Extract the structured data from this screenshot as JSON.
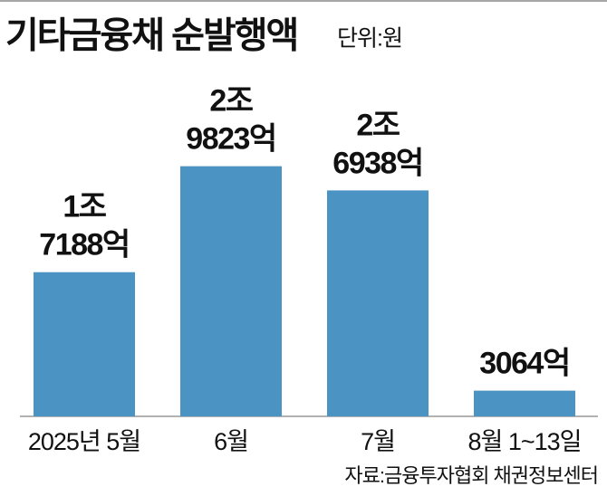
{
  "chart_data": {
    "type": "bar",
    "title": "기타금융채 순발행액",
    "unit_label": "단위:원",
    "categories": [
      "2025년 5월",
      "6월",
      "7월",
      "8월 1~13일"
    ],
    "values": [
      17188,
      29823,
      26938,
      3064
    ],
    "value_labels": [
      [
        "1조",
        "7188억"
      ],
      [
        "2조",
        "9823억"
      ],
      [
        "2조",
        "6938억"
      ],
      [
        "3064억"
      ]
    ],
    "color": "#4a93c3",
    "ylim": [
      0,
      30000
    ],
    "source": "자료:금융투자협회 채권정보센터"
  }
}
